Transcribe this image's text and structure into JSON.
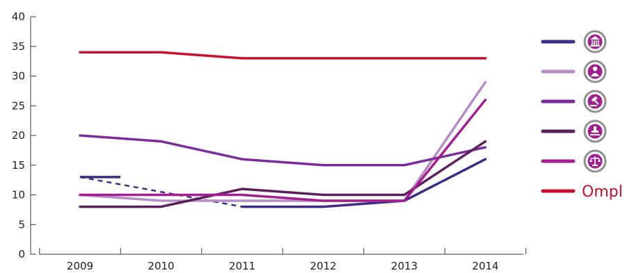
{
  "chart_data": {
    "type": "line",
    "title": "",
    "xlabel": "",
    "ylabel": "",
    "x": [
      "2009",
      "2010",
      "2011",
      "2012",
      "2013",
      "2014"
    ],
    "ylim": [
      0,
      40
    ],
    "yticks": [
      "0",
      "5",
      "10",
      "15",
      "20",
      "25",
      "30",
      "35",
      "40"
    ],
    "grid": false,
    "legend_position": "right",
    "series": [
      {
        "values": [
          13,
          null,
          8,
          8,
          9,
          16
        ],
        "color": "#3f2a87",
        "icon": "institution-icon",
        "gap_dashed": true
      },
      {
        "values": [
          10,
          9,
          9,
          9,
          9,
          29
        ],
        "color": "#b58dc6",
        "icon": "person-icon"
      },
      {
        "values": [
          20,
          19,
          16,
          15,
          15,
          18
        ],
        "color": "#7b2b9b",
        "icon": "gavel-icon"
      },
      {
        "values": [
          8,
          8,
          11,
          10,
          10,
          19
        ],
        "color": "#5c1f5e",
        "icon": "stamp-icon"
      },
      {
        "values": [
          10,
          10,
          10,
          9,
          9,
          26
        ],
        "color": "#a31e8f",
        "icon": "scales-icon"
      },
      {
        "values": [
          34,
          34,
          33,
          33,
          33,
          33
        ],
        "color": "#c8102e",
        "icon": "ompl-logo"
      }
    ]
  },
  "legend": {
    "brand_text": "Ompl"
  }
}
